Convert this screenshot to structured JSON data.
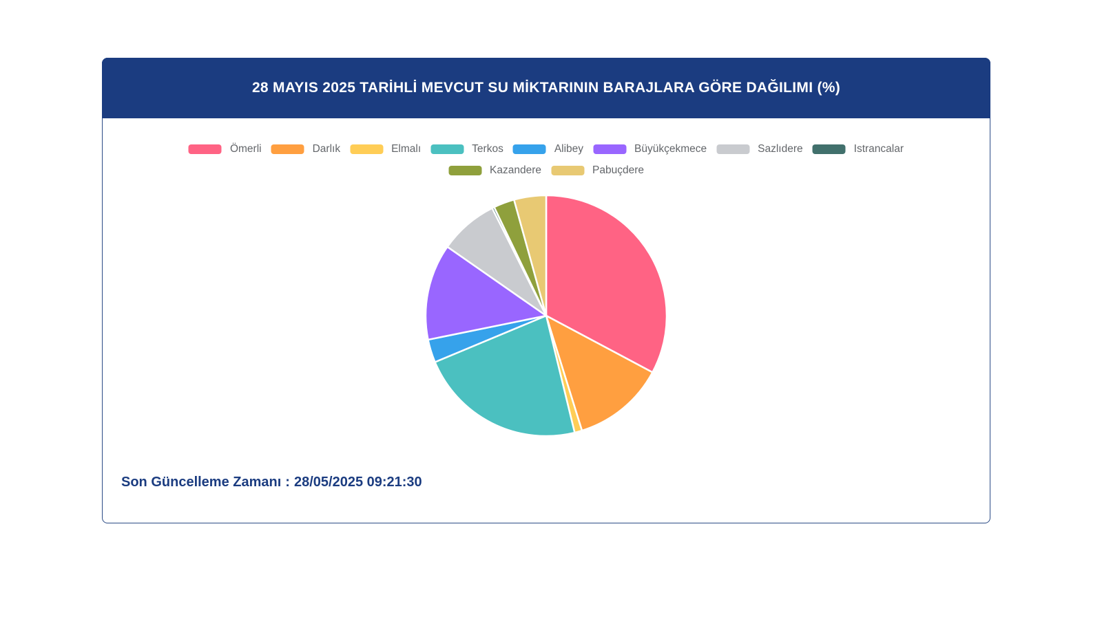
{
  "card": {
    "header": {
      "title": "28 MAYIS 2025 TARİHLİ MEVCUT SU MİKTARININ BARAJLARA GÖRE DAĞILIMI (%)",
      "background_color": "#1B3C80",
      "text_color": "#FFFFFF"
    },
    "footer": {
      "label": "Son Güncelleme Zamanı",
      "separator": ":",
      "value": "28/05/2025 09:21:30",
      "text_color": "#1B3C80"
    }
  },
  "chart_data": {
    "type": "pie",
    "title": "28 MAYIS 2025 TARİHLİ MEVCUT SU MİKTARININ BARAJLARA GÖRE DAĞILIMI (%)",
    "unit": "%",
    "legend_position": "top",
    "start_angle_deg": -90,
    "direction": "clockwise",
    "slice_border_color": "#FFFFFF",
    "series": [
      {
        "label": "Ömerli",
        "value": 32.8,
        "color": "#FF6384"
      },
      {
        "label": "Darlık",
        "value": 12.4,
        "color": "#FF9F40"
      },
      {
        "label": "Elmalı",
        "value": 1.0,
        "color": "#FFCD56"
      },
      {
        "label": "Terkos",
        "value": 22.5,
        "color": "#4BC0C0"
      },
      {
        "label": "Alibey",
        "value": 3.1,
        "color": "#36A2EB"
      },
      {
        "label": "Büyükçekmece",
        "value": 12.9,
        "color": "#9966FF"
      },
      {
        "label": "Sazlıdere",
        "value": 7.9,
        "color": "#C9CBCF"
      },
      {
        "label": "Istrancalar",
        "value": 0.3,
        "color": "#41706C"
      },
      {
        "label": "Kazandere",
        "value": 2.8,
        "color": "#8FA03C"
      },
      {
        "label": "Pabuçdere",
        "value": 4.3,
        "color": "#E8C973"
      }
    ]
  }
}
